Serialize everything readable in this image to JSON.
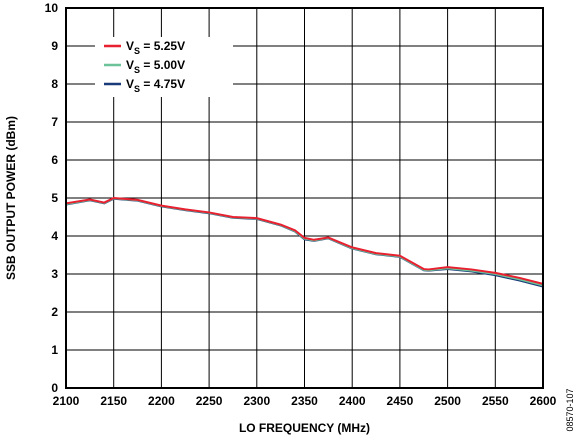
{
  "chart_data": {
    "type": "line",
    "xlabel": "LO FREQUENCY (MHz)",
    "ylabel": "SSB OUTPUT POWER (dBm)",
    "xlim": [
      2100,
      2600
    ],
    "ylim": [
      0,
      10
    ],
    "xticks": [
      "2100",
      "2150",
      "2200",
      "2250",
      "2300",
      "2350",
      "2400",
      "2450",
      "2500",
      "2550",
      "2600"
    ],
    "yticks": [
      "0",
      "1",
      "2",
      "3",
      "4",
      "5",
      "6",
      "7",
      "8",
      "9",
      "10"
    ],
    "grid": true,
    "legend_position": "top-left",
    "figure_id": "08570-107",
    "x": [
      2100,
      2125,
      2140,
      2150,
      2175,
      2200,
      2225,
      2250,
      2275,
      2300,
      2325,
      2340,
      2350,
      2360,
      2375,
      2400,
      2425,
      2450,
      2475,
      2480,
      2500,
      2525,
      2550,
      2575,
      2600
    ],
    "series": [
      {
        "name": "V_S = 5.25V",
        "legend_main": "V",
        "legend_sub": "S",
        "legend_rest": " = 5.25V",
        "color": "#e8202f",
        "values": [
          4.86,
          4.96,
          4.88,
          5.0,
          4.95,
          4.8,
          4.7,
          4.62,
          4.5,
          4.47,
          4.3,
          4.15,
          3.95,
          3.9,
          3.96,
          3.7,
          3.55,
          3.48,
          3.13,
          3.12,
          3.18,
          3.12,
          3.03,
          2.9,
          2.74
        ]
      },
      {
        "name": "V_S = 5.00V",
        "legend_main": "V",
        "legend_sub": "S",
        "legend_rest": " = 5.00V",
        "color": "#6cc39a",
        "values": [
          4.84,
          4.95,
          4.87,
          4.99,
          4.94,
          4.79,
          4.69,
          4.61,
          4.49,
          4.46,
          4.29,
          4.13,
          3.93,
          3.88,
          3.95,
          3.68,
          3.53,
          3.46,
          3.11,
          3.1,
          3.15,
          3.09,
          3.0,
          2.86,
          2.7
        ]
      },
      {
        "name": "V_S = 4.75V",
        "legend_main": "V",
        "legend_sub": "S",
        "legend_rest": " = 4.75V",
        "color": "#1a3a7a",
        "values": [
          4.83,
          4.94,
          4.86,
          4.98,
          4.93,
          4.78,
          4.68,
          4.6,
          4.48,
          4.45,
          4.28,
          4.12,
          3.91,
          3.87,
          3.94,
          3.67,
          3.52,
          3.45,
          3.1,
          3.09,
          3.13,
          3.07,
          2.97,
          2.83,
          2.67
        ]
      }
    ]
  }
}
